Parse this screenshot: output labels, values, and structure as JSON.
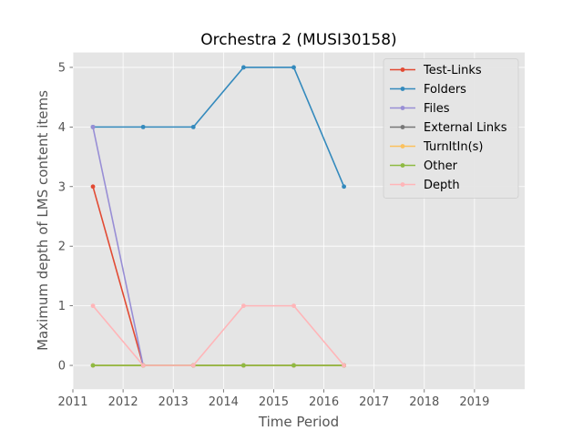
{
  "chart_data": {
    "type": "line",
    "title": "Orchestra 2 (MUSI30158)",
    "xlabel": "Time Period",
    "ylabel": "Maximum depth of LMS content items",
    "xlim": [
      2011,
      2020
    ],
    "ylim": [
      -0.4,
      5.25
    ],
    "xticks": [
      2011,
      2012,
      2013,
      2014,
      2015,
      2016,
      2017,
      2018,
      2019
    ],
    "yticks": [
      0,
      1,
      2,
      3,
      4,
      5
    ],
    "grid": true,
    "legend_position": "top-right",
    "series": [
      {
        "name": "Test-Links",
        "color": "#E24A33",
        "x": [
          2011.4,
          2012.4,
          2013.4,
          2014.4,
          2015.4,
          2016.4
        ],
        "y": [
          3,
          0,
          0,
          0,
          0,
          0
        ]
      },
      {
        "name": "Folders",
        "color": "#348ABD",
        "x": [
          2011.4,
          2012.4,
          2013.4,
          2014.4,
          2015.4,
          2016.4
        ],
        "y": [
          4,
          4,
          4,
          5,
          5,
          3
        ]
      },
      {
        "name": "Files",
        "color": "#988ED5",
        "x": [
          2011.4,
          2012.4,
          2013.4,
          2014.4,
          2015.4,
          2016.4
        ],
        "y": [
          4,
          0,
          0,
          0,
          0,
          0
        ]
      },
      {
        "name": "External Links",
        "color": "#777777",
        "x": [
          2011.4,
          2012.4,
          2013.4,
          2014.4,
          2015.4,
          2016.4
        ],
        "y": [
          0,
          0,
          0,
          0,
          0,
          0
        ]
      },
      {
        "name": "TurnItIn(s)",
        "color": "#FBC15E",
        "x": [
          2011.4,
          2012.4,
          2013.4,
          2014.4,
          2015.4,
          2016.4
        ],
        "y": [
          0,
          0,
          0,
          0,
          0,
          0
        ]
      },
      {
        "name": "Other",
        "color": "#8EBA42",
        "x": [
          2011.4,
          2012.4,
          2013.4,
          2014.4,
          2015.4,
          2016.4
        ],
        "y": [
          0,
          0,
          0,
          0,
          0,
          0
        ]
      },
      {
        "name": "Depth",
        "color": "#FFB5B8",
        "x": [
          2011.4,
          2012.4,
          2013.4,
          2014.4,
          2015.4,
          2016.4
        ],
        "y": [
          1,
          0,
          0,
          1,
          1,
          0
        ]
      }
    ]
  }
}
